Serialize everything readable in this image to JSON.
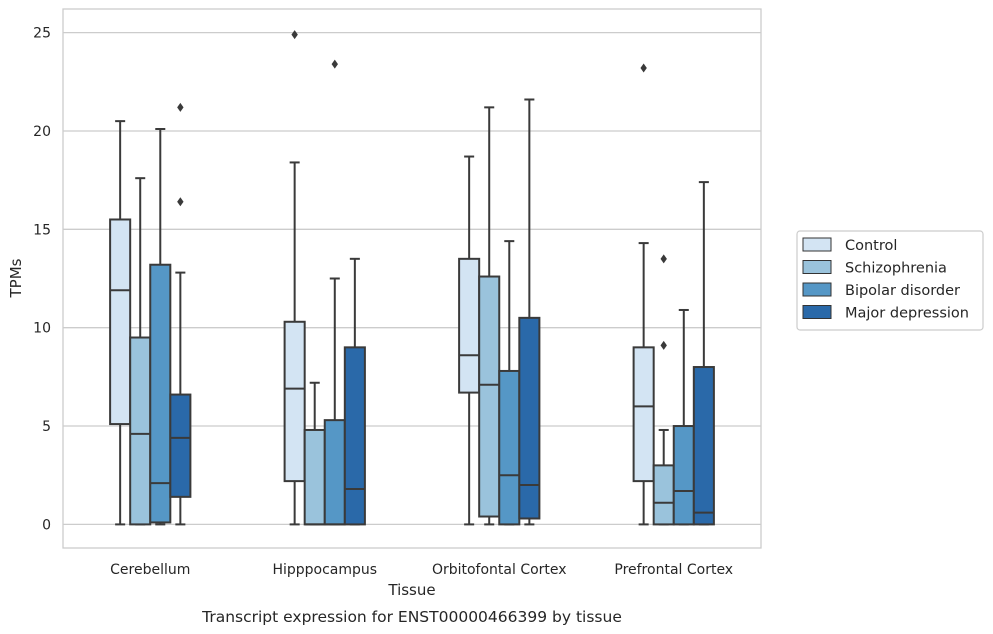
{
  "caption": "Transcript expression for ENST00000466399 by tissue",
  "chart_data": {
    "type": "box",
    "xlabel": "Tissue",
    "ylabel": "TPMs",
    "ylim": [
      -1.2,
      26.2
    ],
    "yticks": [
      0,
      5,
      10,
      15,
      20,
      25
    ],
    "grid": "y",
    "legend_position": "right",
    "categories": [
      "Cerebellum",
      "Hipppocampus",
      "Orbitofontal Cortex",
      "Prefrontal Cortex"
    ],
    "series": [
      {
        "name": "Control",
        "color": "#d3e4f3",
        "boxes": [
          {
            "whisker_low": 0,
            "q1": 5.1,
            "median": 11.9,
            "q3": 15.5,
            "whisker_high": 20.5,
            "outliers": []
          },
          {
            "whisker_low": 0,
            "q1": 2.2,
            "median": 6.9,
            "q3": 10.3,
            "whisker_high": 18.4,
            "outliers": [
              24.9
            ]
          },
          {
            "whisker_low": 0,
            "q1": 6.7,
            "median": 8.6,
            "q3": 13.5,
            "whisker_high": 18.7,
            "outliers": []
          },
          {
            "whisker_low": 0,
            "q1": 2.2,
            "median": 6.0,
            "q3": 9.0,
            "whisker_high": 14.3,
            "outliers": [
              23.2
            ]
          }
        ]
      },
      {
        "name": "Schizophrenia",
        "color": "#9ac3dc",
        "boxes": [
          {
            "whisker_low": 0,
            "q1": 0,
            "median": 4.6,
            "q3": 9.5,
            "whisker_high": 17.6,
            "outliers": []
          },
          {
            "whisker_low": 0,
            "q1": 0,
            "median": 0,
            "q3": 4.8,
            "whisker_high": 7.2,
            "outliers": []
          },
          {
            "whisker_low": 0,
            "q1": 0.4,
            "median": 7.1,
            "q3": 12.6,
            "whisker_high": 21.2,
            "outliers": []
          },
          {
            "whisker_low": 0,
            "q1": 0,
            "median": 1.1,
            "q3": 3.0,
            "whisker_high": 4.8,
            "outliers": [
              9.1,
              13.5
            ]
          }
        ]
      },
      {
        "name": "Bipolar disorder",
        "color": "#5597c6",
        "boxes": [
          {
            "whisker_low": 0,
            "q1": 0.1,
            "median": 2.1,
            "q3": 13.2,
            "whisker_high": 20.1,
            "outliers": []
          },
          {
            "whisker_low": 0,
            "q1": 0,
            "median": 0,
            "q3": 5.3,
            "whisker_high": 12.5,
            "outliers": [
              23.4
            ]
          },
          {
            "whisker_low": 0,
            "q1": 0,
            "median": 2.5,
            "q3": 7.8,
            "whisker_high": 14.4,
            "outliers": []
          },
          {
            "whisker_low": 0,
            "q1": 0,
            "median": 1.7,
            "q3": 5.0,
            "whisker_high": 10.9,
            "outliers": []
          }
        ]
      },
      {
        "name": "Major depression",
        "color": "#2a69a9",
        "boxes": [
          {
            "whisker_low": 0,
            "q1": 1.4,
            "median": 4.4,
            "q3": 6.6,
            "whisker_high": 12.8,
            "outliers": [
              16.4,
              21.2
            ]
          },
          {
            "whisker_low": 0,
            "q1": 0,
            "median": 1.8,
            "q3": 9.0,
            "whisker_high": 13.5,
            "outliers": []
          },
          {
            "whisker_low": 0,
            "q1": 0.3,
            "median": 2.0,
            "q3": 10.5,
            "whisker_high": 21.6,
            "outliers": []
          },
          {
            "whisker_low": 0,
            "q1": 0,
            "median": 0.6,
            "q3": 8.0,
            "whisker_high": 17.4,
            "outliers": []
          }
        ]
      }
    ]
  }
}
